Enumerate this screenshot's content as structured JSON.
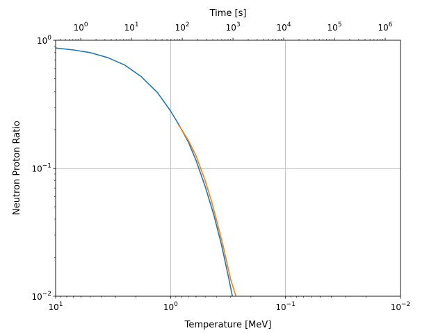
{
  "chart_data": {
    "type": "line",
    "xlabel": "Temperature [MeV]",
    "ylabel": "Neutron Proton Ratio",
    "x2label": "Time [s]",
    "x_scale": "log",
    "x_inverted": true,
    "y_scale": "log",
    "x2_scale": "log",
    "xlim": [
      10,
      0.01
    ],
    "ylim": [
      0.01,
      1
    ],
    "x2lim": [
      0.32,
      2000000
    ],
    "x_ticks": [
      {
        "value": 10,
        "base": "10",
        "exp": "1"
      },
      {
        "value": 1,
        "base": "10",
        "exp": "0"
      },
      {
        "value": 0.1,
        "base": "10",
        "exp": "−1"
      },
      {
        "value": 0.01,
        "base": "10",
        "exp": "−2"
      }
    ],
    "y_ticks": [
      {
        "value": 1,
        "base": "10",
        "exp": "0"
      },
      {
        "value": 0.1,
        "base": "10",
        "exp": "−1"
      },
      {
        "value": 0.01,
        "base": "10",
        "exp": "−2"
      }
    ],
    "x2_ticks": [
      {
        "value": 1,
        "base": "10",
        "exp": "0"
      },
      {
        "value": 10,
        "base": "10",
        "exp": "1"
      },
      {
        "value": 100,
        "base": "10",
        "exp": "2"
      },
      {
        "value": 1000,
        "base": "10",
        "exp": "3"
      },
      {
        "value": 10000,
        "base": "10",
        "exp": "4"
      },
      {
        "value": 100000,
        "base": "10",
        "exp": "5"
      },
      {
        "value": 1000000,
        "base": "10",
        "exp": "6"
      }
    ],
    "grid": true,
    "colors": {
      "series_1": "#1f77b4",
      "series_2": "#ff7f0e",
      "grid": "#b0b0b0"
    },
    "series": [
      {
        "x": [
          10,
          7,
          5,
          3.5,
          2.5,
          1.8,
          1.3,
          1.0,
          0.85,
          0.7,
          0.6,
          0.5,
          0.42,
          0.36,
          0.31,
          0.29
        ],
        "y": [
          0.87,
          0.84,
          0.8,
          0.73,
          0.64,
          0.52,
          0.39,
          0.28,
          0.22,
          0.16,
          0.115,
          0.072,
          0.043,
          0.025,
          0.0135,
          0.01
        ]
      },
      {
        "x": [
          0.86,
          0.8,
          0.7,
          0.6,
          0.5,
          0.44,
          0.4,
          0.35,
          0.3,
          0.27
        ],
        "y": [
          0.22,
          0.2,
          0.165,
          0.125,
          0.08,
          0.055,
          0.04,
          0.025,
          0.0135,
          0.01
        ]
      }
    ]
  }
}
